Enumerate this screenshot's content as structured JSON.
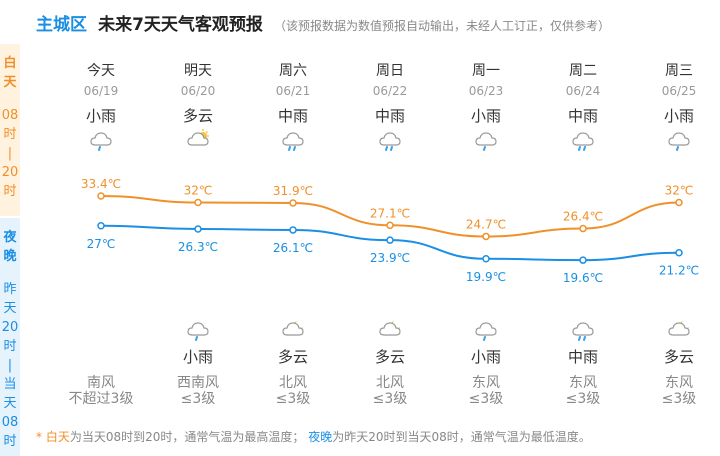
{
  "header": {
    "district": "主城区",
    "title": "未来7天天气客观预报",
    "note": "（该预报数据为数值预报自动输出，未经人工订正，仅供参考）"
  },
  "side": {
    "day": [
      "白",
      "天",
      "08",
      "时",
      "|",
      "20",
      "时"
    ],
    "night": [
      "夜",
      "晚",
      "昨",
      "天",
      "20",
      "时",
      "|",
      "当",
      "天",
      "08",
      "时"
    ]
  },
  "days": [
    {
      "name": "今天",
      "date": "06/19",
      "day_cond": "小雨",
      "day_icon": "light-rain-icon",
      "night_cond": "",
      "night_icon": "",
      "wind_dir": "南风",
      "wind_lvl": "不超过3级"
    },
    {
      "name": "明天",
      "date": "06/20",
      "day_cond": "多云",
      "day_icon": "partly-cloudy-icon",
      "night_cond": "小雨",
      "night_icon": "light-rain-icon",
      "wind_dir": "西南风",
      "wind_lvl": "≤3级"
    },
    {
      "name": "周六",
      "date": "06/21",
      "day_cond": "中雨",
      "day_icon": "moderate-rain-icon",
      "night_cond": "多云",
      "night_icon": "partly-cloudy-night-icon",
      "wind_dir": "北风",
      "wind_lvl": "≤3级"
    },
    {
      "name": "周日",
      "date": "06/22",
      "day_cond": "中雨",
      "day_icon": "moderate-rain-icon",
      "night_cond": "多云",
      "night_icon": "partly-cloudy-night-icon",
      "wind_dir": "北风",
      "wind_lvl": "≤3级"
    },
    {
      "name": "周一",
      "date": "06/23",
      "day_cond": "小雨",
      "day_icon": "light-rain-icon",
      "night_cond": "小雨",
      "night_icon": "light-rain-icon",
      "wind_dir": "东风",
      "wind_lvl": "≤3级"
    },
    {
      "name": "周二",
      "date": "06/24",
      "day_cond": "中雨",
      "day_icon": "moderate-rain-icon",
      "night_cond": "中雨",
      "night_icon": "moderate-rain-icon",
      "wind_dir": "东风",
      "wind_lvl": "≤3级"
    },
    {
      "name": "周三",
      "date": "06/25",
      "day_cond": "小雨",
      "day_icon": "light-rain-icon",
      "night_cond": "多云",
      "night_icon": "partly-cloudy-night-icon",
      "wind_dir": "东风",
      "wind_lvl": "≤3级"
    }
  ],
  "chart_data": {
    "type": "line",
    "categories": [
      "06/19",
      "06/20",
      "06/21",
      "06/22",
      "06/23",
      "06/24",
      "06/25"
    ],
    "series": [
      {
        "values": [
          33.4,
          32,
          31.9,
          27.1,
          24.7,
          26.4,
          32
        ],
        "labels": [
          "33.4℃",
          "32℃",
          "31.9℃",
          "27.1℃",
          "24.7℃",
          "26.4℃",
          "32℃"
        ],
        "color": "#f0902a"
      },
      {
        "values": [
          27,
          26.3,
          26.1,
          23.9,
          19.9,
          19.6,
          21.2
        ],
        "labels": [
          "27℃",
          "26.3℃",
          "26.1℃",
          "23.9℃",
          "19.9℃",
          "19.6℃",
          "21.2℃"
        ],
        "color": "#1a8fe3"
      }
    ]
  },
  "footer": {
    "star": "*",
    "day_word": "白天",
    "day_text": "为当天08时到20时，通常气温为最高温度；",
    "night_word": "夜晚",
    "night_text": "为昨天20时到当天08时，通常气温为最低温度。"
  }
}
